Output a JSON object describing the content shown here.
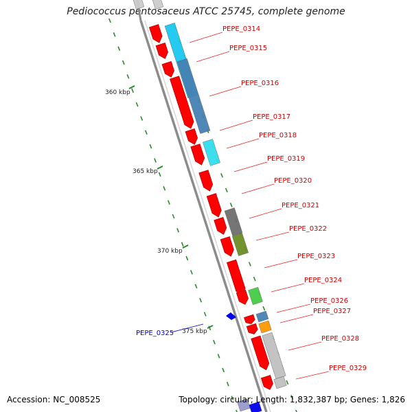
{
  "title": "Pediococcus pentosaceus ATCC 25745, complete genome",
  "footer": {
    "accession": "Accession: NC_008525",
    "topology": "Topology: circular; Length: 1,832,387 bp; Genes: 1,826"
  },
  "colors": {
    "backbone": "#8c8c8c",
    "cds": "#ff0000",
    "label_red": "#cc0000",
    "label_blue": "#0000cc",
    "tick": "#2a8a2a",
    "cyan": "#19c8f0",
    "steel": "#4682b4",
    "gray": "#6e6e6e",
    "olive": "#6b8e23",
    "green": "#44cc44",
    "orange": "#ff9900",
    "light_gray": "#c0c0c0",
    "blue": "#0000ee"
  },
  "scale_labels": [
    "360 kbp",
    "365 kbp",
    "370 kbp",
    "375 kbp"
  ],
  "genes": [
    {
      "name": "PEPE_0314",
      "color": "red"
    },
    {
      "name": "PEPE_0315",
      "color": "red"
    },
    {
      "name": "PEPE_0316",
      "color": "red"
    },
    {
      "name": "PEPE_0317",
      "color": "red"
    },
    {
      "name": "PEPE_0318",
      "color": "red"
    },
    {
      "name": "PEPE_0319",
      "color": "red"
    },
    {
      "name": "PEPE_0320",
      "color": "red"
    },
    {
      "name": "PEPE_0321",
      "color": "red"
    },
    {
      "name": "PEPE_0322",
      "color": "red"
    },
    {
      "name": "PEPE_0323",
      "color": "red"
    },
    {
      "name": "PEPE_0324",
      "color": "red"
    },
    {
      "name": "PEPE_0325",
      "color": "blue"
    },
    {
      "name": "PEPE_0326",
      "color": "red"
    },
    {
      "name": "PEPE_0327",
      "color": "red"
    },
    {
      "name": "PEPE_0328",
      "color": "red"
    },
    {
      "name": "PEPE_0329",
      "color": "red"
    }
  ]
}
